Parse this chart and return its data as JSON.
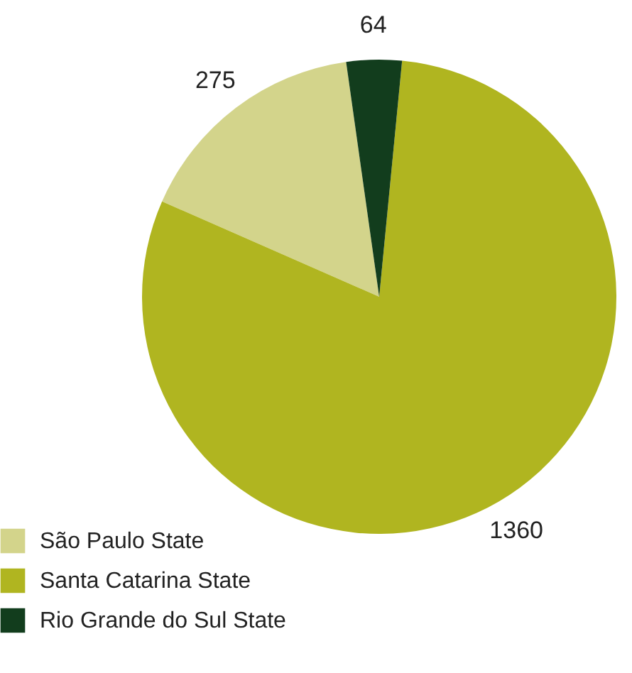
{
  "chart_data": {
    "type": "pie",
    "categories": [
      "São Paulo State",
      "Santa Catarina State",
      "Rio Grande do Sul State"
    ],
    "values": [
      275,
      1360,
      64
    ],
    "colors": [
      "#d3d48b",
      "#b0b520",
      "#123d1d"
    ],
    "data_labels": true,
    "legend": "bottom left"
  }
}
